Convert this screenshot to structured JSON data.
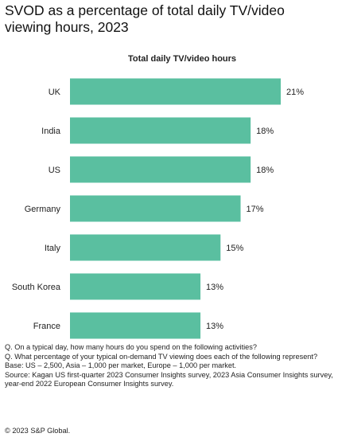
{
  "chart_data": {
    "type": "bar",
    "orientation": "horizontal",
    "title": "SVOD as a percentage of total daily TV/video viewing hours, 2023",
    "subtitle": "Total daily TV/video hours",
    "categories": [
      "UK",
      "India",
      "US",
      "Germany",
      "Italy",
      "South Korea",
      "France"
    ],
    "values": [
      21,
      18,
      18,
      17,
      15,
      13,
      13
    ],
    "data_labels": [
      "21%",
      "18%",
      "18%",
      "17%",
      "15%",
      "13%",
      "13%"
    ],
    "unit": "%",
    "xlim": [
      0,
      21
    ],
    "bar_color": "#5abfa0",
    "grid": false,
    "legend": "none"
  },
  "notes": [
    "Q. On a typical day, how many hours do you spend on the following activities?",
    "Q. What percentage of your typical on-demand TV viewing does each of the following represent?",
    "Base:  US – 2,500, Asia – 1,000 per market, Europe – 1,000 per market.",
    "Source: Kagan US first-quarter 2023 Consumer Insights survey, 2023 Asia Consumer Insights survey, year-end 2022 European Consumer Insights survey."
  ],
  "copyright": "© 2023 S&P Global."
}
